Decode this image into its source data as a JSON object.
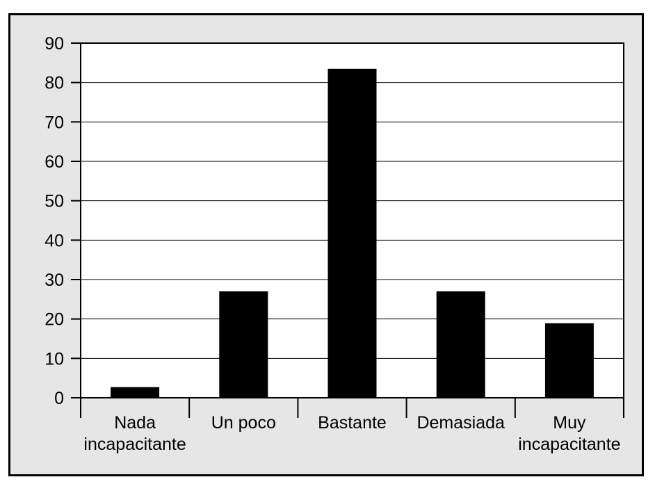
{
  "chart_data": {
    "type": "bar",
    "categories": [
      [
        "Nada",
        "incapacitante"
      ],
      [
        "Un poco"
      ],
      [
        "Bastante"
      ],
      [
        "Demasiada"
      ],
      [
        "Muy",
        "incapacitante"
      ]
    ],
    "values": [
      2.7,
      27,
      83.5,
      27,
      18.9
    ],
    "ylim": [
      0,
      90
    ],
    "yticks": [
      "0",
      "10",
      "20",
      "30",
      "40",
      "50",
      "60",
      "70",
      "80",
      "90"
    ],
    "grid": true,
    "colors": {
      "bar": "#000000",
      "plot_bg": "#ffffff",
      "frame_bg": "#e6e6e6"
    }
  }
}
